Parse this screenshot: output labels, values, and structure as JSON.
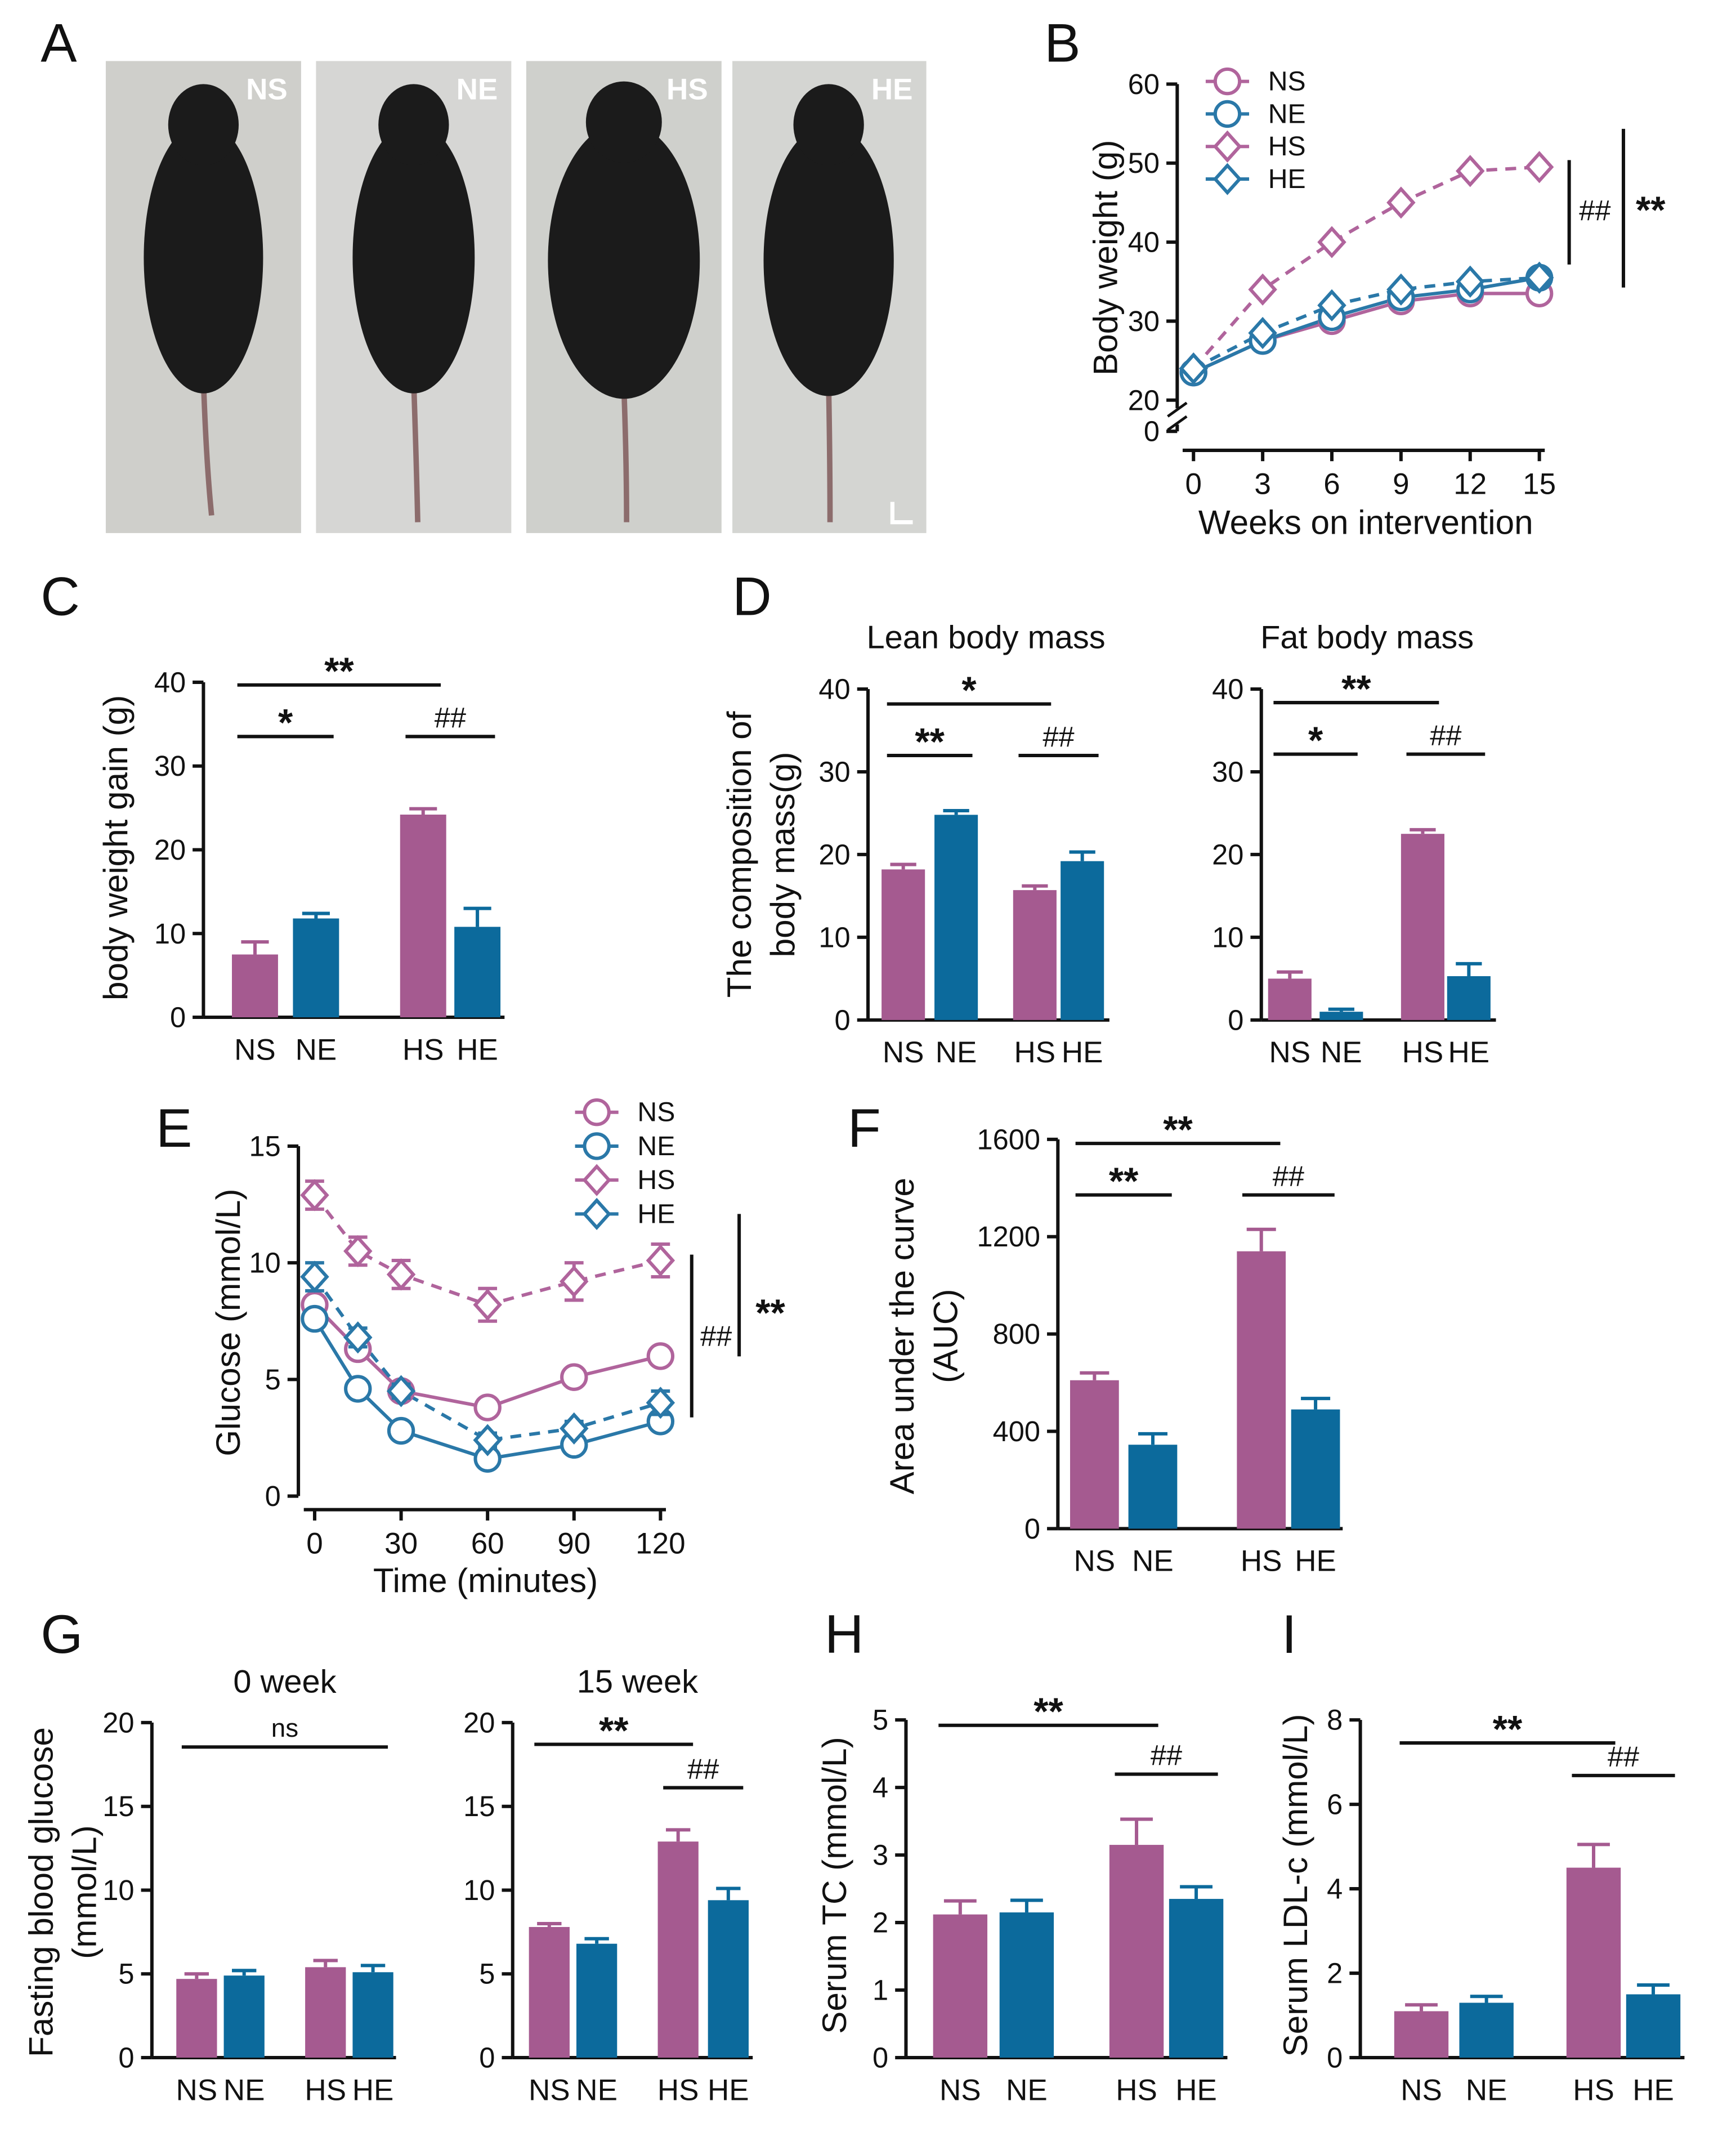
{
  "photo_panel": {
    "panel": "A",
    "captions": [
      "NS",
      "NE",
      "HS",
      "HE"
    ]
  },
  "chart_data": [
    {
      "panel": "B",
      "type": "line",
      "x": [
        0,
        3,
        6,
        9,
        12,
        15
      ],
      "xlim": [
        0,
        15
      ],
      "xticks": [
        0,
        3,
        6,
        9,
        12,
        15
      ],
      "ylim": [
        0,
        60
      ],
      "yticks": [
        0,
        20,
        30,
        40,
        50,
        60
      ],
      "axis_break": [
        0,
        20
      ],
      "ylabel": "Body weight (g)",
      "xlabel": "Weeks on intervention",
      "legend": "upper left",
      "series": [
        {
          "name": "NS",
          "color": "#b0649c",
          "marker": "circle",
          "linestyle": "solid",
          "values": [
            23.5,
            27.5,
            30,
            32.5,
            33.5,
            33.5
          ]
        },
        {
          "name": "NE",
          "color": "#2a78a8",
          "marker": "circle",
          "linestyle": "solid",
          "values": [
            23.5,
            27.5,
            30.5,
            33,
            34,
            35.5
          ]
        },
        {
          "name": "HS",
          "color": "#b0649c",
          "marker": "diamond",
          "linestyle": "dashed",
          "values": [
            24,
            34,
            40,
            45,
            49,
            49.5
          ]
        },
        {
          "name": "HE",
          "color": "#2a78a8",
          "marker": "diamond",
          "linestyle": "dashed",
          "values": [
            24,
            28.5,
            32,
            34,
            35,
            35.5
          ]
        }
      ],
      "annotations": [
        "##",
        "**"
      ]
    },
    {
      "panel": "C",
      "type": "bar",
      "categories": [
        "NS",
        "NE",
        "HS",
        "HE"
      ],
      "values": [
        7.5,
        11.8,
        24.2,
        10.8
      ],
      "errors": [
        1.5,
        0.6,
        0.7,
        2.2
      ],
      "colors": [
        "#a55a90",
        "#0c6a9c",
        "#a55a90",
        "#0c6a9c"
      ],
      "ylim": [
        0,
        40
      ],
      "yticks": [
        0,
        10,
        20,
        30,
        40
      ],
      "ylabel": "body weight gain (g)",
      "annotations": [
        "**",
        "*",
        "##"
      ]
    },
    {
      "panel": "D",
      "type": "bar",
      "title": "Lean body mass",
      "categories": [
        "NS",
        "NE",
        "HS",
        "HE"
      ],
      "values": [
        18.2,
        24.8,
        15.7,
        19.2
      ],
      "errors": [
        0.6,
        0.5,
        0.5,
        1.1
      ],
      "colors": [
        "#a55a90",
        "#0c6a9c",
        "#a55a90",
        "#0c6a9c"
      ],
      "ylim": [
        0,
        40
      ],
      "yticks": [
        0,
        10,
        20,
        30,
        40
      ],
      "ylabel": [
        "The composition of",
        "body mass(g)"
      ],
      "annotations": [
        "*",
        "**",
        "##"
      ]
    },
    {
      "type": "bar",
      "title": "Fat body mass",
      "categories": [
        "NS",
        "NE",
        "HS",
        "HE"
      ],
      "values": [
        5.0,
        1.0,
        22.5,
        5.3
      ],
      "errors": [
        0.8,
        0.3,
        0.5,
        1.5
      ],
      "colors": [
        "#a55a90",
        "#0c6a9c",
        "#a55a90",
        "#0c6a9c"
      ],
      "ylim": [
        0,
        40
      ],
      "yticks": [
        0,
        10,
        20,
        30,
        40
      ],
      "annotations": [
        "**",
        "*",
        "##"
      ]
    },
    {
      "panel": "E",
      "type": "line",
      "x": [
        0,
        15,
        30,
        60,
        90,
        120
      ],
      "xlim": [
        0,
        120
      ],
      "xticks": [
        0,
        30,
        60,
        90,
        120
      ],
      "ylim": [
        0,
        15
      ],
      "yticks": [
        0,
        5,
        10,
        15
      ],
      "ylabel": "Glucose (mmol/L)",
      "xlabel": "Time (minutes)",
      "legend": "upper right",
      "series": [
        {
          "name": "NS",
          "color": "#b0649c",
          "marker": "circle",
          "linestyle": "solid",
          "values": [
            8.2,
            6.3,
            4.5,
            3.8,
            5.1,
            6.0
          ],
          "errors": [
            0.3,
            0.3,
            0.2,
            0.2,
            0.3,
            0.3
          ]
        },
        {
          "name": "NE",
          "color": "#2a78a8",
          "marker": "circle",
          "linestyle": "solid",
          "values": [
            7.6,
            4.6,
            2.8,
            1.6,
            2.2,
            3.2
          ],
          "errors": [
            0.3,
            0.2,
            0.2,
            0.2,
            0.2,
            0.3
          ]
        },
        {
          "name": "HS",
          "color": "#b0649c",
          "marker": "diamond",
          "linestyle": "dashed",
          "values": [
            12.9,
            10.5,
            9.5,
            8.2,
            9.2,
            10.1
          ],
          "errors": [
            0.6,
            0.6,
            0.6,
            0.7,
            0.8,
            0.7
          ]
        },
        {
          "name": "HE",
          "color": "#2a78a8",
          "marker": "diamond",
          "linestyle": "dashed",
          "values": [
            9.4,
            6.8,
            4.5,
            2.4,
            2.9,
            4.0
          ],
          "errors": [
            0.6,
            0.4,
            0.3,
            0.3,
            0.3,
            0.5
          ]
        }
      ],
      "annotations": [
        "##",
        "**"
      ]
    },
    {
      "panel": "F",
      "type": "bar",
      "categories": [
        "NS",
        "NE",
        "HS",
        "HE"
      ],
      "values": [
        610,
        345,
        1140,
        490
      ],
      "errors": [
        30,
        45,
        90,
        45
      ],
      "colors": [
        "#a55a90",
        "#0c6a9c",
        "#a55a90",
        "#0c6a9c"
      ],
      "ylim": [
        0,
        1600
      ],
      "yticks": [
        0,
        400,
        800,
        1200,
        1600
      ],
      "ylabel": [
        "Area under the curve",
        "(AUC)"
      ],
      "annotations": [
        "**",
        "**",
        "##"
      ]
    },
    {
      "panel": "G",
      "type": "bar",
      "title": "0 week",
      "categories": [
        "NS",
        "NE",
        "HS",
        "HE"
      ],
      "values": [
        4.7,
        4.9,
        5.4,
        5.1
      ],
      "errors": [
        0.3,
        0.3,
        0.4,
        0.4
      ],
      "colors": [
        "#a55a90",
        "#0c6a9c",
        "#a55a90",
        "#0c6a9c"
      ],
      "ylim": [
        0,
        20
      ],
      "yticks": [
        0,
        5,
        10,
        15,
        20
      ],
      "ylabel": [
        "Fasting blood glucose",
        "(mmol/L)"
      ],
      "annotations": [
        "ns"
      ]
    },
    {
      "type": "bar",
      "title": "15 week",
      "categories": [
        "NS",
        "NE",
        "HS",
        "HE"
      ],
      "values": [
        7.8,
        6.8,
        12.9,
        9.4
      ],
      "errors": [
        0.2,
        0.3,
        0.7,
        0.7
      ],
      "colors": [
        "#a55a90",
        "#0c6a9c",
        "#a55a90",
        "#0c6a9c"
      ],
      "ylim": [
        0,
        20
      ],
      "yticks": [
        0,
        5,
        10,
        15,
        20
      ],
      "annotations": [
        "**",
        "##"
      ]
    },
    {
      "panel": "H",
      "type": "bar",
      "categories": [
        "NS",
        "NE",
        "HS",
        "HE"
      ],
      "values": [
        2.12,
        2.15,
        3.15,
        2.35
      ],
      "errors": [
        0.2,
        0.18,
        0.38,
        0.18
      ],
      "colors": [
        "#a55a90",
        "#0c6a9c",
        "#a55a90",
        "#0c6a9c"
      ],
      "ylim": [
        0,
        5
      ],
      "yticks": [
        0,
        1,
        2,
        3,
        4,
        5
      ],
      "ylabel": "Serum TC (mmol/L)",
      "annotations": [
        "**",
        "##"
      ]
    },
    {
      "panel": "I",
      "type": "bar",
      "categories": [
        "NS",
        "NE",
        "HS",
        "HE"
      ],
      "values": [
        1.1,
        1.3,
        4.5,
        1.5
      ],
      "errors": [
        0.15,
        0.15,
        0.55,
        0.22
      ],
      "colors": [
        "#a55a90",
        "#0c6a9c",
        "#a55a90",
        "#0c6a9c"
      ],
      "ylim": [
        0,
        8
      ],
      "yticks": [
        0,
        2,
        4,
        6,
        8
      ],
      "ylabel": "Serum LDL-c (mmol/L)",
      "annotations": [
        "**",
        "##"
      ]
    }
  ]
}
